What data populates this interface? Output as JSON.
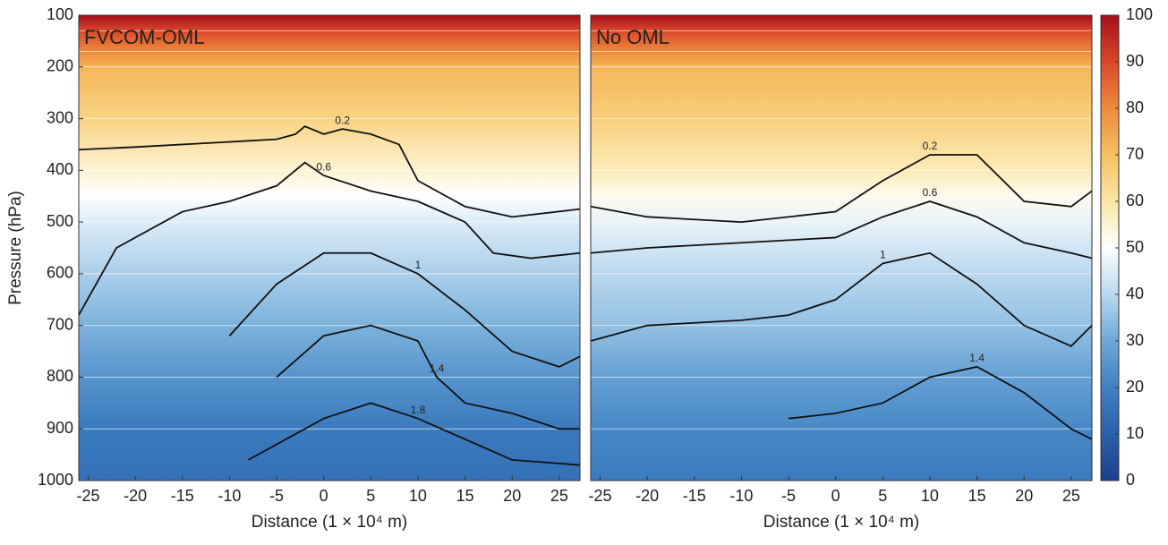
{
  "chart_data": [
    {
      "type": "contour",
      "title": "FVCOM-OML",
      "xlabel": "Distance (1 × 10⁴ m)",
      "ylabel": "Pressure (hPa)",
      "xlim": [
        -26,
        27.2
      ],
      "xticks": [
        -25,
        -20,
        -15,
        -10,
        -5,
        0,
        5,
        10,
        15,
        20,
        25
      ],
      "ylim": [
        100,
        1000
      ],
      "yticks": [
        100,
        200,
        300,
        400,
        500,
        600,
        700,
        800,
        900,
        1000
      ],
      "field": {
        "pressure": [
          100,
          130,
          170,
          200,
          300,
          400,
          450,
          500,
          600,
          700,
          800,
          900,
          1000
        ],
        "values": [
          100,
          90,
          80,
          72,
          65,
          55,
          50,
          45,
          38,
          32,
          25,
          18,
          15
        ]
      },
      "contours": [
        {
          "level": 0.2,
          "x": [
            -26,
            -20,
            -10,
            -5,
            -3,
            -2,
            0,
            2,
            5,
            8,
            10,
            15,
            20,
            27.2
          ],
          "y": [
            360,
            355,
            345,
            340,
            330,
            315,
            330,
            320,
            330,
            350,
            420,
            470,
            490,
            475
          ]
        },
        {
          "level": 0.6,
          "x": [
            -26,
            -22,
            -15,
            -10,
            -5,
            -2,
            0,
            5,
            10,
            15,
            18,
            22,
            27.2
          ],
          "y": [
            680,
            550,
            480,
            460,
            430,
            385,
            410,
            440,
            460,
            500,
            560,
            570,
            560
          ]
        },
        {
          "level": 1,
          "x": [
            -10,
            -5,
            0,
            5,
            10,
            15,
            20,
            25,
            27.2
          ],
          "y": [
            720,
            620,
            560,
            560,
            600,
            670,
            750,
            780,
            760
          ]
        },
        {
          "level": 1.4,
          "x": [
            -5,
            0,
            5,
            10,
            12,
            15,
            20,
            25,
            27.2
          ],
          "y": [
            800,
            720,
            700,
            730,
            800,
            850,
            870,
            900,
            900
          ]
        },
        {
          "level": 1.8,
          "x": [
            -8,
            0,
            5,
            10,
            15,
            20,
            27.2
          ],
          "y": [
            960,
            880,
            850,
            880,
            920,
            960,
            970
          ]
        }
      ]
    },
    {
      "type": "contour",
      "title": "No OML",
      "xlabel": "Distance (1 × 10⁴ m)",
      "xlim": [
        -26,
        27.2
      ],
      "xticks": [
        -25,
        -20,
        -15,
        -10,
        -5,
        0,
        5,
        10,
        15,
        20,
        25
      ],
      "ylim": [
        100,
        1000
      ],
      "field": {
        "pressure": [
          100,
          130,
          170,
          200,
          300,
          400,
          450,
          500,
          600,
          700,
          800,
          900,
          1000
        ],
        "values": [
          100,
          90,
          80,
          72,
          66,
          58,
          52,
          47,
          40,
          35,
          28,
          22,
          18
        ]
      },
      "contours": [
        {
          "level": 0.2,
          "x": [
            -26,
            -20,
            -10,
            0,
            5,
            10,
            15,
            20,
            25,
            27.2
          ],
          "y": [
            470,
            490,
            500,
            480,
            420,
            370,
            370,
            460,
            470,
            440
          ]
        },
        {
          "level": 0.6,
          "x": [
            -26,
            -20,
            -10,
            0,
            5,
            10,
            15,
            20,
            25,
            27.2
          ],
          "y": [
            560,
            550,
            540,
            530,
            490,
            460,
            490,
            540,
            560,
            570
          ]
        },
        {
          "level": 1,
          "x": [
            -26,
            -20,
            -10,
            -5,
            0,
            5,
            10,
            15,
            20,
            25,
            27.2
          ],
          "y": [
            730,
            700,
            690,
            680,
            650,
            580,
            560,
            620,
            700,
            740,
            700
          ]
        },
        {
          "level": 1.4,
          "x": [
            -5,
            0,
            5,
            10,
            15,
            20,
            25,
            27.2
          ],
          "y": [
            880,
            870,
            850,
            800,
            780,
            830,
            900,
            920
          ]
        }
      ],
      "colorbar": {
        "lim": [
          0,
          100
        ],
        "ticks": [
          0,
          10,
          20,
          30,
          40,
          50,
          60,
          70,
          80,
          90,
          100
        ],
        "colors": [
          "#1b3f8b",
          "#2a60aa",
          "#3f80c2",
          "#6ea8d8",
          "#b9d8ee",
          "#ffffff",
          "#fbe6a6",
          "#f7c060",
          "#ee8a3b",
          "#d9472a",
          "#a30f1a"
        ]
      }
    }
  ]
}
